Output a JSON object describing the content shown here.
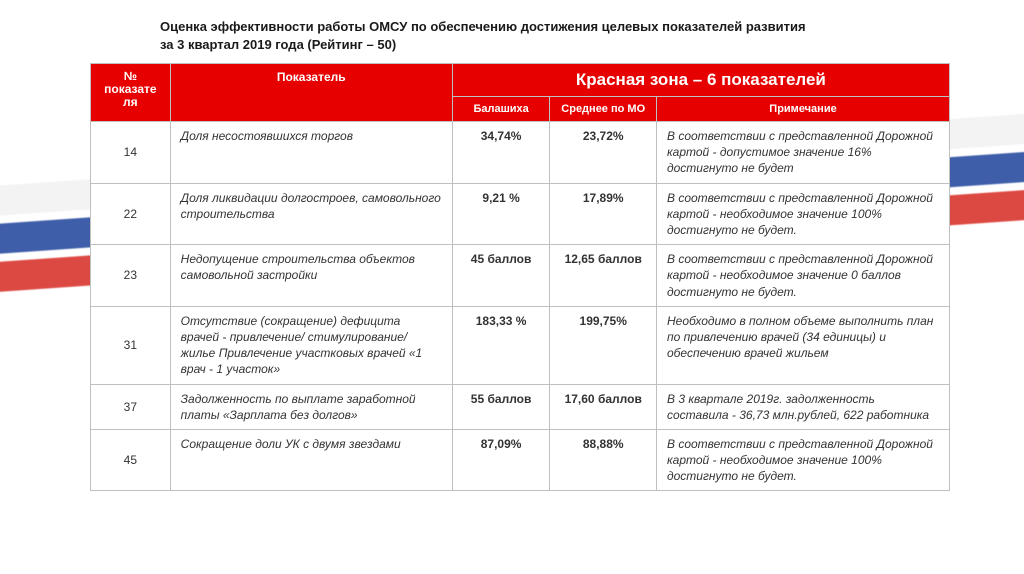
{
  "title_line1": "Оценка эффективности работы ОМСУ по обеспечению достижения целевых показателей развития",
  "title_line2": "за 3 квартал 2019 года (Рейтинг – 50)",
  "colors": {
    "header_bg": "#e60000",
    "header_text": "#ffffff",
    "border": "#bfbfbf",
    "body_text": "#333333",
    "bg_white": "#ffffff",
    "stripe_blue": "#2a4da0",
    "stripe_red": "#d9362e",
    "stripe_white": "#f2f2f2"
  },
  "header": {
    "num": "№ показате ля",
    "indicator": "Показатель",
    "zone": "Красная зона –  6 показателей",
    "col_city": "Балашиха",
    "col_avg": "Среднее по МО",
    "col_note": "Примечание"
  },
  "rows": [
    {
      "num": "14",
      "indicator": "Доля несостоявшихся торгов",
      "city": "34,74%",
      "avg": "23,72%",
      "note": " В соответствии с представленной Дорожной картой - допустимое значение 16% достигнуто не будет"
    },
    {
      "num": "22",
      "indicator": "Доля ликвидации  долгостроев, самовольного строительства",
      "city": "9,21 %",
      "avg": "17,89%",
      "note": "В соответствии с представленной Дорожной картой - необходимое значение 100% достигнуто не будет."
    },
    {
      "num": "23",
      "indicator": "Недопущение строительства объектов самовольной застройки",
      "city": "45 баллов",
      "avg": "12,65 баллов",
      "note": "В соответствии с представленной Дорожной картой - необходимое значение 0 баллов достигнуто не будет."
    },
    {
      "num": "31",
      "indicator": "Отсутствие (сокращение) дефицита врачей - привлечение/ стимулирование/жилье Привлечение участковых врачей «1 врач - 1 участок»",
      "city": "183,33 %",
      "avg": "199,75%",
      "note": "Необходимо в полном объеме выполнить план по привлечению врачей (34 единицы) и обеспечению врачей жильем"
    },
    {
      "num": "37",
      "indicator": "Задолженность по выплате заработной платы «Зарплата без долгов»",
      "city": "55 баллов",
      "avg": "17,60 баллов",
      "note": "В 3 квартале 2019г. задолженность составила - 36,73 млн.рублей, 622 работника"
    },
    {
      "num": "45",
      "indicator": "Сокращение доли УК с двумя звездами",
      "city": "87,09%",
      "avg": "88,88%",
      "note": "В соответствии с представленной Дорожной картой - необходимое значение 100% достигнуто не будет."
    }
  ]
}
